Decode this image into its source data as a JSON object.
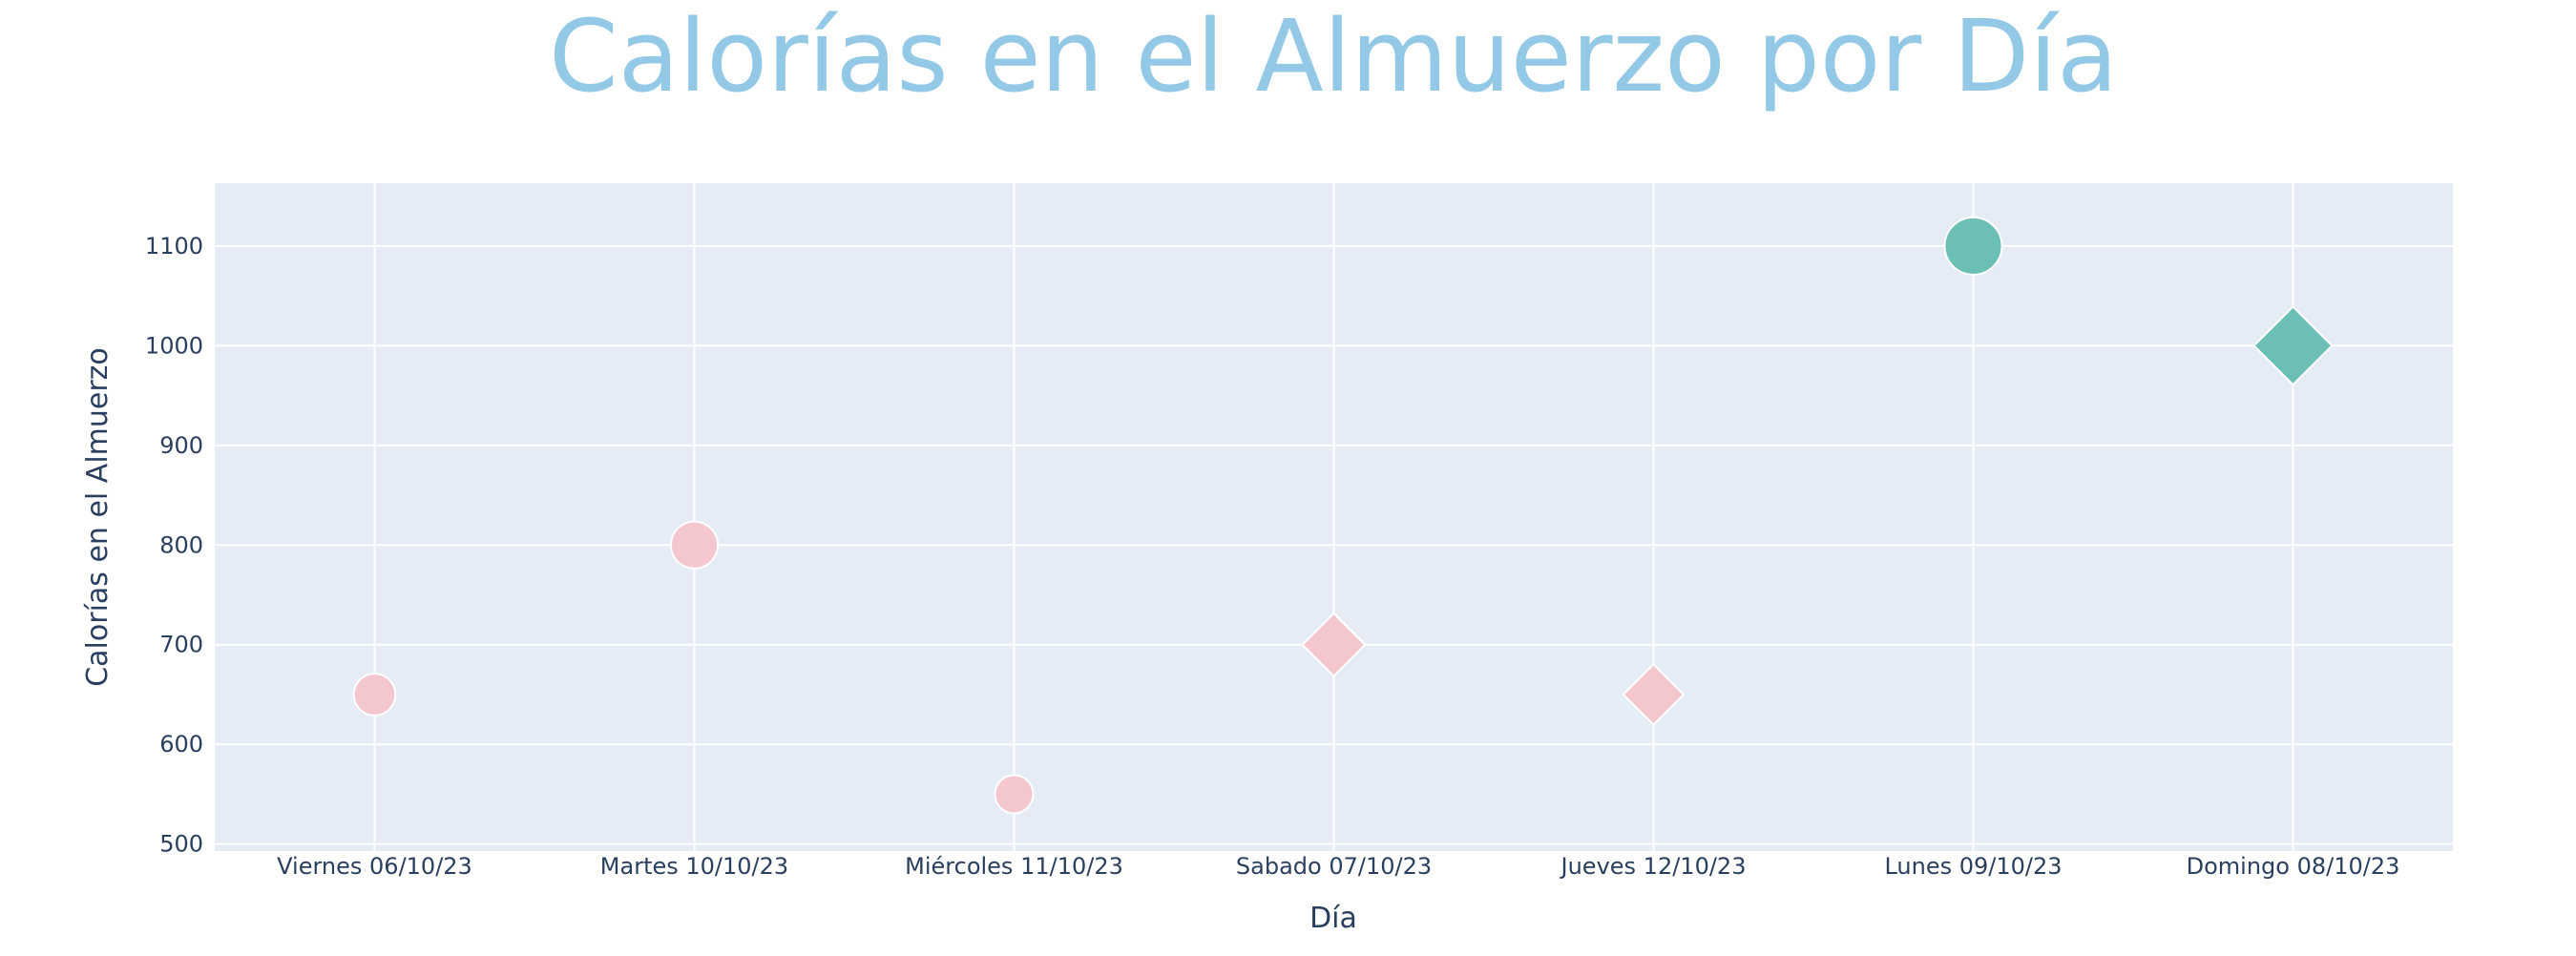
{
  "chart_data": {
    "type": "scatter",
    "title": "Calorías en el Almuerzo por Día",
    "xlabel": "Día",
    "ylabel": "Calorías en el Almuerzo",
    "categories": [
      "Viernes 06/10/23",
      "Martes 10/10/23",
      "Miércoles 11/10/23",
      "Sabado 07/10/23",
      "Jueves 12/10/23",
      "Lunes 09/10/23",
      "Domingo 08/10/23"
    ],
    "y_ticks": [
      500,
      600,
      700,
      800,
      900,
      1000,
      1100
    ],
    "ylim": [
      493,
      1163
    ],
    "grid": true,
    "points": [
      {
        "x": "Viernes 06/10/23",
        "y": 650,
        "marker": "circle",
        "color": "#f4c7cf",
        "size": 650
      },
      {
        "x": "Martes 10/10/23",
        "y": 800,
        "marker": "circle",
        "color": "#f4c7cf",
        "size": 800
      },
      {
        "x": "Miércoles 11/10/23",
        "y": 550,
        "marker": "circle",
        "color": "#f4c7cf",
        "size": 550
      },
      {
        "x": "Sabado 07/10/23",
        "y": 700,
        "marker": "diamond",
        "color": "#f4c7cf",
        "size": 700
      },
      {
        "x": "Jueves 12/10/23",
        "y": 650,
        "marker": "diamond",
        "color": "#f4c7cf",
        "size": 650
      },
      {
        "x": "Lunes 09/10/23",
        "y": 1100,
        "marker": "circle",
        "color": "#6cbfb5",
        "size": 1100
      },
      {
        "x": "Domingo 08/10/23",
        "y": 1000,
        "marker": "diamond",
        "color": "#6cbfb5",
        "size": 1000
      }
    ],
    "colors": {
      "title": "#93c9e6",
      "plot_bg": "#e5ecf6",
      "grid": "#ffffff",
      "text": "#2a3f5f"
    }
  }
}
